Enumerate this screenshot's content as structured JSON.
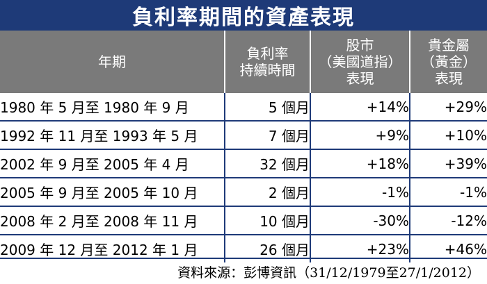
{
  "chart_data": {
    "type": "table",
    "title": "負利率期間的資產表現",
    "columns": {
      "period": "年期",
      "duration": [
        "負利率",
        "持續時間"
      ],
      "stock": [
        "股市",
        "（美國道指）",
        "表現"
      ],
      "gold": [
        "貴金屬",
        "（黃金）",
        "表現"
      ]
    },
    "rows": [
      {
        "period": "1980 年 5 月至 1980 年 9 月",
        "duration": "5 個月",
        "stock": "+14%",
        "gold": "+29%"
      },
      {
        "period": "1992 年 11 月至 1993 年 5 月",
        "duration": "7 個月",
        "stock": "+9%",
        "gold": "+10%"
      },
      {
        "period": "2002 年 9 月至 2005 年 4 月",
        "duration": "32 個月",
        "stock": "+18%",
        "gold": "+39%"
      },
      {
        "period": "2005 年 9 月至 2005 年 10 月",
        "duration": "2 個月",
        "stock": "-1%",
        "gold": "-1%"
      },
      {
        "period": "2008 年 2 月至 2008 年 11 月",
        "duration": "10 個月",
        "stock": "-30%",
        "gold": "-12%"
      },
      {
        "period": "2009 年 12 月至 2012 年 1 月",
        "duration": "26 個月",
        "stock": "+23%",
        "gold": "+46%"
      }
    ],
    "source": "資料來源：彭博資訊（31/12/1979至27/1/2012）"
  },
  "colors": {
    "title_background": "#1e3a78",
    "header_background": "#7a7a7a",
    "grid_lines": "#1e3a78"
  }
}
